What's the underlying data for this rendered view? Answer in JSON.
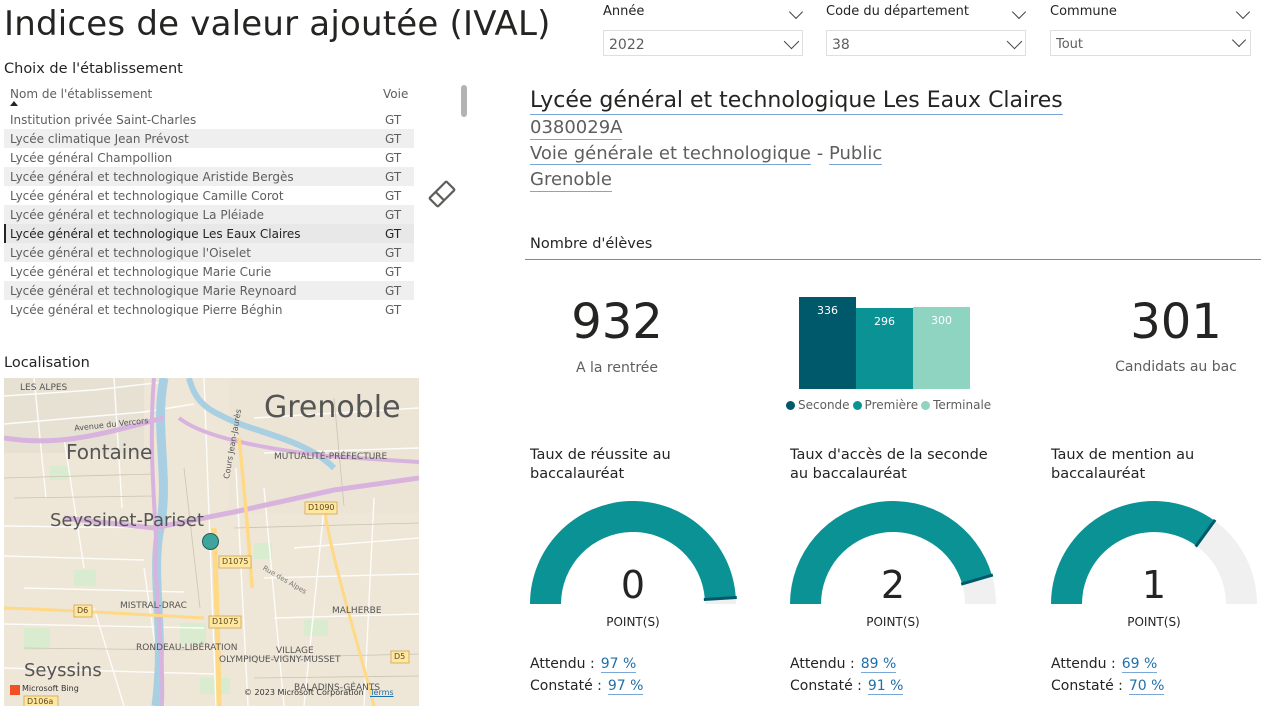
{
  "page": {
    "title": "Indices de valeur ajoutée (IVAL)"
  },
  "filters": [
    {
      "label": "Année",
      "value": "2022"
    },
    {
      "label": "Code du département",
      "value": "38"
    },
    {
      "label": "Commune",
      "value": "Tout"
    }
  ],
  "choice": {
    "heading": "Choix de l'établissement",
    "col_name": "Nom de l'établissement",
    "col_voie": "Voie",
    "rows": [
      {
        "name": "Institution privée Saint-Charles",
        "voie": "GT"
      },
      {
        "name": "Lycée climatique Jean Prévost",
        "voie": "GT"
      },
      {
        "name": "Lycée général Champollion",
        "voie": "GT"
      },
      {
        "name": "Lycée général et technologique Aristide Bergès",
        "voie": "GT"
      },
      {
        "name": "Lycée général et technologique Camille Corot",
        "voie": "GT"
      },
      {
        "name": "Lycée général et technologique La Pléiade",
        "voie": "GT"
      },
      {
        "name": "Lycée général et technologique Les Eaux Claires",
        "voie": "GT"
      },
      {
        "name": "Lycée général et technologique l'Oiselet",
        "voie": "GT"
      },
      {
        "name": "Lycée général et technologique Marie Curie",
        "voie": "GT"
      },
      {
        "name": "Lycée général et technologique Marie Reynoard",
        "voie": "GT"
      },
      {
        "name": "Lycée général et technologique Pierre Béghin",
        "voie": "GT"
      }
    ],
    "selected_index": 6
  },
  "map": {
    "heading": "Localisation",
    "labels": {
      "grenoble": "Grenoble",
      "fontaine": "Fontaine",
      "seyssinet": "Seyssinet-Pariset",
      "seyssins": "Seyssins",
      "les_alpes": "LES ALPES",
      "vercors": "Avenue du Vercors",
      "mutualite": "MUTUALITÉ-PRÉFECTURE",
      "jean_jaures": "Cours Jean-Jaurès",
      "mistral": "MISTRAL-DRAC",
      "malherbe": "MALHERBE",
      "rondeau": "RONDEAU-LIBÉRATION",
      "village": "VILLAGE",
      "olympique": "OLYMPIQUE-VIGNY-MUSSET",
      "baladins": "BALADINS-GÉANTS",
      "alpes_rue": "Rue des Alpes",
      "d1090": "D1090",
      "d1075a": "D1075",
      "d1075b": "D1075",
      "d6": "D6",
      "d5": "D5",
      "d106": "D106a"
    },
    "bing": "Microsoft Bing",
    "copyright": "© 2023 Microsoft Corporation",
    "terms": "Terms"
  },
  "school": {
    "name": "Lycée général et technologique Les Eaux Claires",
    "code": "0380029A",
    "voie": "Voie générale et technologique",
    "sep": "-",
    "secteur": "Public",
    "commune": "Grenoble"
  },
  "eleves": {
    "heading": "Nombre d'élèves",
    "rentree_value": "932",
    "rentree_label": "A la rentrée",
    "bac_value": "301",
    "bac_label": "Candidats au bac"
  },
  "chart_data": {
    "type": "bar",
    "categories": [
      "Seconde",
      "Première",
      "Terminale"
    ],
    "values": [
      336,
      296,
      300
    ],
    "colors": [
      "#00596b",
      "#0b9295",
      "#8fd3c1"
    ],
    "legend": "bottom"
  },
  "gauges": [
    {
      "title": "Taux de réussite au baccalauréat",
      "value": "0",
      "unit": "POINT(S)",
      "attendu_label": "Attendu :",
      "attendu": "97 %",
      "constate_label": "Constaté :",
      "constate": "97 %",
      "fill": 0.98
    },
    {
      "title": "Taux d'accès de la seconde au baccalauréat",
      "value": "2",
      "unit": "POINT(S)",
      "attendu_label": "Attendu :",
      "attendu": "89 %",
      "constate_label": "Constaté :",
      "constate": "91 %",
      "fill": 0.91
    },
    {
      "title": "Taux de mention au baccalauréat",
      "value": "1",
      "unit": "POINT(S)",
      "attendu_label": "Attendu :",
      "attendu": "69 %",
      "constate_label": "Constaté :",
      "constate": "70 %",
      "fill": 0.7
    }
  ],
  "colors": {
    "teal": "#0b9295",
    "dark_teal": "#00596b",
    "gauge_track": "#f0f0f0",
    "link_blue": "#1f6fa8"
  },
  "icons": {
    "eraser": "eraser-icon",
    "sort": "sort-ascending-icon"
  }
}
